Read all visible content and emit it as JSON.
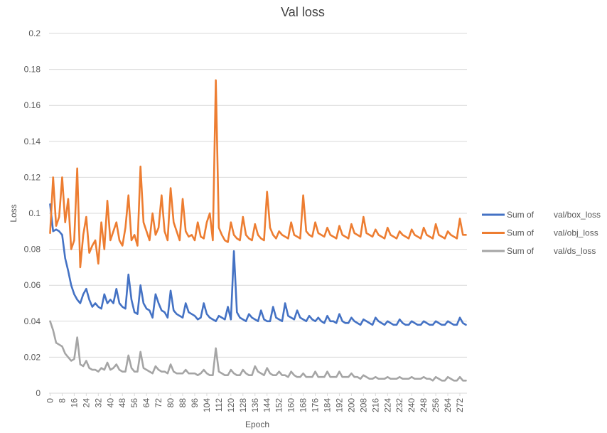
{
  "chart_data": {
    "type": "line",
    "title": "Val loss",
    "xlabel": "Epoch",
    "ylabel": "Loss",
    "ylim": [
      0,
      0.2
    ],
    "yticks": [
      "0",
      "0.02",
      "0.04",
      "0.06",
      "0.08",
      "0.1",
      "0.12",
      "0.14",
      "0.16",
      "0.18",
      "0.2"
    ],
    "xticks": [
      "0",
      "8",
      "16",
      "24",
      "32",
      "40",
      "48",
      "56",
      "64",
      "72",
      "80",
      "88",
      "96",
      "104",
      "112",
      "120",
      "128",
      "136",
      "144",
      "152",
      "160",
      "168",
      "176",
      "184",
      "192",
      "200",
      "208",
      "216",
      "224",
      "232",
      "240",
      "248",
      "256",
      "264",
      "272"
    ],
    "grid": true,
    "legend_position": "right",
    "x_note": "Series values listed every 2 epochs (epoch 0, 2, 4, ... 276).",
    "series": [
      {
        "name": "Sum of val/box_loss",
        "legend_prefix": "Sum of",
        "legend_metric": "val/box_loss",
        "color": "#4472C4",
        "x_step": 2,
        "values": [
          0.105,
          0.09,
          0.091,
          0.09,
          0.088,
          0.075,
          0.068,
          0.06,
          0.055,
          0.052,
          0.05,
          0.055,
          0.058,
          0.052,
          0.048,
          0.05,
          0.048,
          0.047,
          0.055,
          0.05,
          0.052,
          0.05,
          0.058,
          0.05,
          0.048,
          0.047,
          0.066,
          0.052,
          0.045,
          0.044,
          0.06,
          0.05,
          0.047,
          0.046,
          0.042,
          0.055,
          0.05,
          0.046,
          0.045,
          0.042,
          0.057,
          0.046,
          0.044,
          0.043,
          0.042,
          0.05,
          0.045,
          0.044,
          0.043,
          0.041,
          0.042,
          0.05,
          0.044,
          0.042,
          0.041,
          0.04,
          0.043,
          0.042,
          0.041,
          0.048,
          0.041,
          0.079,
          0.045,
          0.042,
          0.041,
          0.04,
          0.044,
          0.042,
          0.041,
          0.04,
          0.046,
          0.041,
          0.04,
          0.04,
          0.048,
          0.042,
          0.041,
          0.04,
          0.05,
          0.043,
          0.042,
          0.041,
          0.046,
          0.042,
          0.041,
          0.04,
          0.043,
          0.041,
          0.04,
          0.042,
          0.04,
          0.039,
          0.043,
          0.04,
          0.04,
          0.039,
          0.044,
          0.04,
          0.039,
          0.039,
          0.042,
          0.04,
          0.039,
          0.038,
          0.041,
          0.04,
          0.039,
          0.038,
          0.042,
          0.04,
          0.039,
          0.038,
          0.04,
          0.039,
          0.038,
          0.038,
          0.041,
          0.039,
          0.038,
          0.038,
          0.04,
          0.039,
          0.038,
          0.038,
          0.04,
          0.039,
          0.038,
          0.038,
          0.04,
          0.039,
          0.038,
          0.038,
          0.04,
          0.039,
          0.038,
          0.038,
          0.042,
          0.039,
          0.038
        ]
      },
      {
        "name": "Sum of val/obj_loss",
        "legend_prefix": "Sum of",
        "legend_metric": "val/obj_loss",
        "color": "#ED7D31",
        "x_step": 2,
        "values": [
          0.089,
          0.12,
          0.093,
          0.098,
          0.12,
          0.095,
          0.108,
          0.08,
          0.085,
          0.125,
          0.07,
          0.088,
          0.098,
          0.078,
          0.082,
          0.085,
          0.072,
          0.095,
          0.08,
          0.107,
          0.085,
          0.09,
          0.095,
          0.085,
          0.082,
          0.092,
          0.11,
          0.085,
          0.088,
          0.082,
          0.126,
          0.095,
          0.09,
          0.085,
          0.1,
          0.088,
          0.092,
          0.11,
          0.09,
          0.085,
          0.114,
          0.095,
          0.09,
          0.085,
          0.108,
          0.09,
          0.087,
          0.088,
          0.085,
          0.095,
          0.087,
          0.086,
          0.095,
          0.1,
          0.085,
          0.174,
          0.092,
          0.088,
          0.085,
          0.084,
          0.095,
          0.088,
          0.086,
          0.085,
          0.098,
          0.088,
          0.086,
          0.085,
          0.094,
          0.088,
          0.086,
          0.085,
          0.112,
          0.092,
          0.088,
          0.086,
          0.09,
          0.088,
          0.087,
          0.086,
          0.095,
          0.088,
          0.087,
          0.086,
          0.11,
          0.09,
          0.088,
          0.087,
          0.095,
          0.089,
          0.088,
          0.087,
          0.092,
          0.088,
          0.087,
          0.086,
          0.093,
          0.088,
          0.087,
          0.086,
          0.094,
          0.089,
          0.088,
          0.087,
          0.098,
          0.089,
          0.088,
          0.087,
          0.091,
          0.088,
          0.087,
          0.086,
          0.092,
          0.088,
          0.087,
          0.086,
          0.09,
          0.088,
          0.087,
          0.086,
          0.091,
          0.088,
          0.087,
          0.086,
          0.092,
          0.088,
          0.087,
          0.086,
          0.094,
          0.088,
          0.087,
          0.086,
          0.09,
          0.088,
          0.087,
          0.086,
          0.097,
          0.088,
          0.088
        ]
      },
      {
        "name": "Sum of val/ds_loss",
        "legend_prefix": "Sum of",
        "legend_metric": "val/ds_loss",
        "color": "#A5A5A5",
        "x_step": 2,
        "values": [
          0.04,
          0.035,
          0.028,
          0.027,
          0.026,
          0.022,
          0.02,
          0.018,
          0.019,
          0.031,
          0.016,
          0.015,
          0.018,
          0.014,
          0.013,
          0.013,
          0.012,
          0.014,
          0.013,
          0.017,
          0.013,
          0.014,
          0.016,
          0.013,
          0.012,
          0.012,
          0.021,
          0.014,
          0.012,
          0.012,
          0.023,
          0.014,
          0.013,
          0.012,
          0.011,
          0.015,
          0.013,
          0.012,
          0.012,
          0.011,
          0.016,
          0.012,
          0.011,
          0.011,
          0.011,
          0.013,
          0.011,
          0.011,
          0.011,
          0.01,
          0.011,
          0.013,
          0.011,
          0.01,
          0.01,
          0.025,
          0.012,
          0.011,
          0.01,
          0.01,
          0.013,
          0.011,
          0.01,
          0.01,
          0.013,
          0.011,
          0.01,
          0.01,
          0.015,
          0.012,
          0.011,
          0.01,
          0.014,
          0.011,
          0.01,
          0.01,
          0.012,
          0.01,
          0.01,
          0.009,
          0.012,
          0.01,
          0.009,
          0.009,
          0.011,
          0.009,
          0.009,
          0.009,
          0.012,
          0.009,
          0.009,
          0.009,
          0.012,
          0.009,
          0.009,
          0.009,
          0.012,
          0.009,
          0.009,
          0.009,
          0.011,
          0.009,
          0.009,
          0.008,
          0.01,
          0.009,
          0.008,
          0.008,
          0.009,
          0.008,
          0.008,
          0.008,
          0.009,
          0.008,
          0.008,
          0.008,
          0.009,
          0.008,
          0.008,
          0.008,
          0.009,
          0.008,
          0.008,
          0.008,
          0.009,
          0.008,
          0.008,
          0.007,
          0.009,
          0.008,
          0.007,
          0.007,
          0.009,
          0.008,
          0.007,
          0.007,
          0.009,
          0.007,
          0.007
        ]
      }
    ]
  }
}
